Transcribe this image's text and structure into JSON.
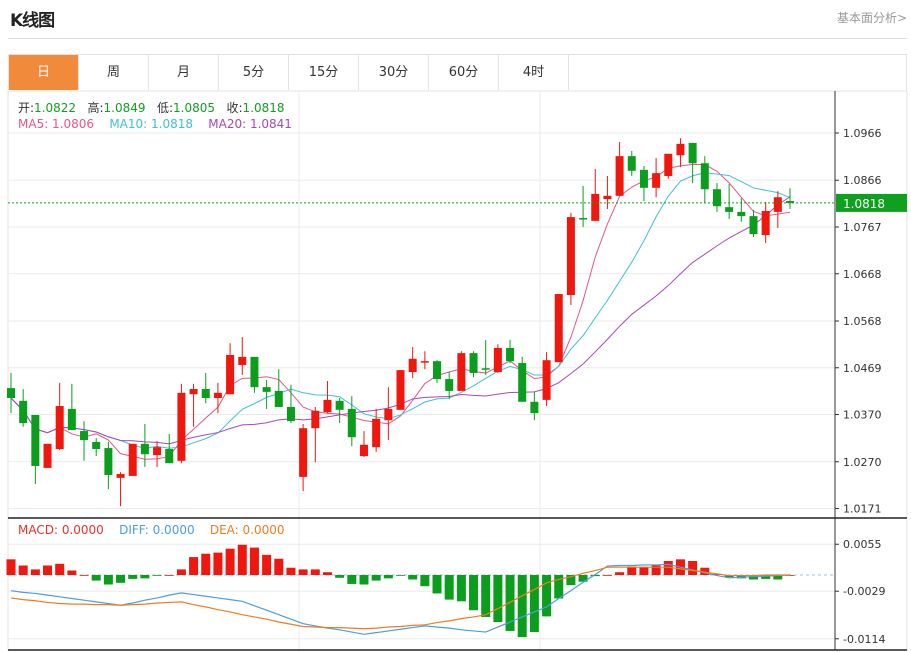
{
  "header": {
    "title": "K线图",
    "analysis_link": "基本面分析>"
  },
  "tabs": [
    {
      "label": "日",
      "active": true
    },
    {
      "label": "周"
    },
    {
      "label": "月"
    },
    {
      "label": "5分"
    },
    {
      "label": "15分"
    },
    {
      "label": "30分"
    },
    {
      "label": "60分"
    },
    {
      "label": "4时"
    }
  ],
  "ohlc_legend": {
    "open_label": "开:",
    "open": "1.0822",
    "high_label": "高:",
    "high": "1.0849",
    "low_label": "低:",
    "low": "1.0805",
    "close_label": "收:",
    "close": "1.0818"
  },
  "ma_legend": {
    "ma5": "MA5: 1.0806",
    "ma10": "MA10: 1.0818",
    "ma20": "MA20: 1.0841"
  },
  "macd_legend": {
    "macd": "MACD: 0.0000",
    "diff": "DIFF: 0.0000",
    "dea": "DEA: 0.0000"
  },
  "colors": {
    "up": "#f0170f",
    "down": "#0b9e1c",
    "ma5": "#e8568a",
    "ma10": "#3cc3d3",
    "ma20": "#a848bd",
    "diff": "#4a9fe0",
    "dea": "#f07c20",
    "accent": "#f28a3c",
    "price_label": "#10a020"
  },
  "chart_data": [
    {
      "type": "candlestick",
      "ylim": [
        1.015,
        1.105
      ],
      "yticks": [
        "1.0966",
        "1.0866",
        "1.0767",
        "1.0668",
        "1.0568",
        "1.0469",
        "1.0370",
        "1.0270",
        "1.0171"
      ],
      "grid": true,
      "last_price": "1.0818",
      "ma_periods": [
        5,
        10,
        20
      ],
      "ohlc": [
        [
          1.0426,
          1.0458,
          1.0373,
          1.0405
        ],
        [
          1.0399,
          1.0424,
          1.0344,
          1.0352
        ],
        [
          1.0369,
          1.0369,
          1.0223,
          1.0261
        ],
        [
          1.0257,
          1.0308,
          1.0257,
          1.0308
        ],
        [
          1.0297,
          1.0437,
          1.0295,
          1.0388
        ],
        [
          1.0382,
          1.0435,
          1.0337,
          1.0337
        ],
        [
          1.0335,
          1.0356,
          1.0272,
          1.0316
        ],
        [
          1.0312,
          1.032,
          1.0282,
          1.0297
        ],
        [
          1.0299,
          1.0312,
          1.0212,
          1.0242
        ],
        [
          1.0236,
          1.0248,
          1.0176,
          1.0244
        ],
        [
          1.024,
          1.0308,
          1.024,
          1.0308
        ],
        [
          1.0308,
          1.035,
          1.0259,
          1.0286
        ],
        [
          1.0284,
          1.0314,
          1.0259,
          1.0301
        ],
        [
          1.0297,
          1.0329,
          1.0267,
          1.0267
        ],
        [
          1.0272,
          1.0435,
          1.0267,
          1.0416
        ],
        [
          1.0413,
          1.0435,
          1.0344,
          1.0424
        ],
        [
          1.0424,
          1.0458,
          1.0394,
          1.0405
        ],
        [
          1.0405,
          1.0437,
          1.0373,
          1.0416
        ],
        [
          1.0413,
          1.0521,
          1.0413,
          1.0496
        ],
        [
          1.0475,
          1.0534,
          1.0454,
          1.0492
        ],
        [
          1.0492,
          1.0492,
          1.0416,
          1.0428
        ],
        [
          1.0428,
          1.0443,
          1.0382,
          1.0418
        ],
        [
          1.042,
          1.0466,
          1.0386,
          1.0386
        ],
        [
          1.0386,
          1.0433,
          1.0352,
          1.0356
        ],
        [
          1.0238,
          1.035,
          1.0208,
          1.0341
        ],
        [
          1.0341,
          1.0386,
          1.0269,
          1.0378
        ],
        [
          1.0375,
          1.0441,
          1.0373,
          1.0401
        ],
        [
          1.0399,
          1.0405,
          1.0352,
          1.038
        ],
        [
          1.0382,
          1.0409,
          1.0303,
          1.0322
        ],
        [
          1.0282,
          1.0335,
          1.028,
          1.0306
        ],
        [
          1.0301,
          1.0382,
          1.0291,
          1.0361
        ],
        [
          1.0358,
          1.0428,
          1.0316,
          1.0382
        ],
        [
          1.038,
          1.0464,
          1.038,
          1.0464
        ],
        [
          1.046,
          1.0513,
          1.0447,
          1.0488
        ],
        [
          1.0481,
          1.0504,
          1.0466,
          1.0483
        ],
        [
          1.0483,
          1.0485,
          1.0437,
          1.0445
        ],
        [
          1.0445,
          1.046,
          1.0403,
          1.042
        ],
        [
          1.042,
          1.0504,
          1.042,
          1.05
        ],
        [
          1.05,
          1.0504,
          1.0449,
          1.0458
        ],
        [
          1.0468,
          1.0528,
          1.0454,
          1.0466
        ],
        [
          1.046,
          1.0519,
          1.0458,
          1.0511
        ],
        [
          1.0511,
          1.0528,
          1.0479,
          1.0483
        ],
        [
          1.0479,
          1.0492,
          1.0397,
          1.0397
        ],
        [
          1.0397,
          1.0418,
          1.0358,
          1.0373
        ],
        [
          1.0401,
          1.0502,
          1.0388,
          1.0485
        ],
        [
          1.0481,
          1.0625,
          1.0481,
          1.0625
        ],
        [
          1.0623,
          1.0797,
          1.0602,
          1.0788
        ],
        [
          1.0786,
          1.0854,
          1.0767,
          1.0784
        ],
        [
          1.078,
          1.089,
          1.078,
          1.0837
        ],
        [
          1.0826,
          1.0875,
          1.0805,
          1.0833
        ],
        [
          1.0833,
          1.0947,
          1.0833,
          1.0917
        ],
        [
          1.0917,
          1.0928,
          1.0875,
          1.0886
        ],
        [
          1.0888,
          1.0896,
          1.0822,
          1.085
        ],
        [
          1.085,
          1.0913,
          1.083,
          1.0881
        ],
        [
          1.0875,
          1.0922,
          1.0869,
          1.0922
        ],
        [
          1.0919,
          1.0955,
          1.0894,
          1.0943
        ],
        [
          1.0945,
          1.0945,
          1.086,
          1.0902
        ],
        [
          1.0902,
          1.0917,
          1.0818,
          1.0847
        ],
        [
          1.0847,
          1.086,
          1.0799,
          1.0811
        ],
        [
          1.0809,
          1.0858,
          1.0784,
          1.0799
        ],
        [
          1.0799,
          1.0828,
          1.0778,
          1.079
        ],
        [
          1.079,
          1.0803,
          1.0746,
          1.0752
        ],
        [
          1.075,
          1.082,
          1.0733,
          1.0801
        ],
        [
          1.0799,
          1.0843,
          1.0765,
          1.083
        ],
        [
          1.0822,
          1.0849,
          1.0805,
          1.0818
        ]
      ]
    },
    {
      "type": "bar",
      "ylim": [
        -0.013,
        0.0075
      ],
      "yticks": [
        "0.0055",
        "-0.0029",
        "-0.0114"
      ],
      "macd": [
        0.0028,
        0.0017,
        0.001,
        0.0017,
        0.002,
        0.0008,
        0.0,
        -0.001,
        -0.0017,
        -0.0014,
        -0.0007,
        -0.0006,
        -0.0001,
        0.0,
        0.001,
        0.0032,
        0.0038,
        0.004,
        0.0047,
        0.0054,
        0.0049,
        0.0036,
        0.0029,
        0.0013,
        0.001,
        0.001,
        0.0005,
        -0.0005,
        -0.0016,
        -0.0017,
        -0.001,
        -0.0006,
        -0.0001,
        -0.0008,
        -0.002,
        -0.0033,
        -0.0044,
        -0.0047,
        -0.0063,
        -0.0075,
        -0.0084,
        -0.01,
        -0.0111,
        -0.0102,
        -0.0074,
        -0.0042,
        -0.0018,
        -0.0012,
        -0.0002,
        0.0,
        0.0005,
        0.0015,
        0.0014,
        0.0017,
        0.0025,
        0.0028,
        0.0025,
        0.0013,
        0.0002,
        -0.0004,
        -0.0006,
        -0.0008,
        -0.0007,
        -0.0008,
        0.0
      ],
      "diff": [
        -0.0028,
        -0.0031,
        -0.0033,
        -0.0036,
        -0.0039,
        -0.0042,
        -0.0045,
        -0.0048,
        -0.0051,
        -0.0054,
        -0.005,
        -0.0045,
        -0.0041,
        -0.0036,
        -0.0032,
        -0.0035,
        -0.0038,
        -0.0041,
        -0.0044,
        -0.0047,
        -0.0055,
        -0.0063,
        -0.0071,
        -0.0079,
        -0.0087,
        -0.0091,
        -0.0095,
        -0.0098,
        -0.0102,
        -0.0106,
        -0.0103,
        -0.01,
        -0.0097,
        -0.0094,
        -0.0091,
        -0.0093,
        -0.0095,
        -0.0098,
        -0.01,
        -0.0102,
        -0.0093,
        -0.0084,
        -0.0075,
        -0.0066,
        -0.0057,
        -0.0042,
        -0.0028,
        -0.0013,
        0.0001,
        0.0016,
        0.0017,
        0.0017,
        0.0018,
        0.0018,
        0.0019,
        0.0014,
        0.0009,
        0.0004,
        -0.0001,
        -0.0005,
        -0.0004,
        -0.0003,
        -0.0002,
        -0.0001,
        0.0
      ],
      "dea": [
        -0.0041,
        -0.0044,
        -0.0046,
        -0.0049,
        -0.0051,
        -0.0052,
        -0.0052,
        -0.0053,
        -0.0053,
        -0.0054,
        -0.0053,
        -0.0052,
        -0.005,
        -0.0049,
        -0.0048,
        -0.0053,
        -0.0057,
        -0.0062,
        -0.0066,
        -0.0071,
        -0.0075,
        -0.0079,
        -0.0084,
        -0.0088,
        -0.0092,
        -0.0093,
        -0.0094,
        -0.0094,
        -0.0095,
        -0.0096,
        -0.0095,
        -0.0093,
        -0.0092,
        -0.009,
        -0.0089,
        -0.0085,
        -0.0082,
        -0.0078,
        -0.0075,
        -0.0071,
        -0.006,
        -0.0049,
        -0.0037,
        -0.0026,
        -0.0014,
        -0.0008,
        -0.0003,
        0.0003,
        0.0008,
        0.0014,
        0.0014,
        0.0014,
        0.0014,
        0.0014,
        0.0014,
        0.0011,
        0.0008,
        0.0005,
        0.0002,
        -0.0001,
        -0.0001,
        -0.0001,
        0.0,
        0.0,
        0.0
      ]
    }
  ]
}
